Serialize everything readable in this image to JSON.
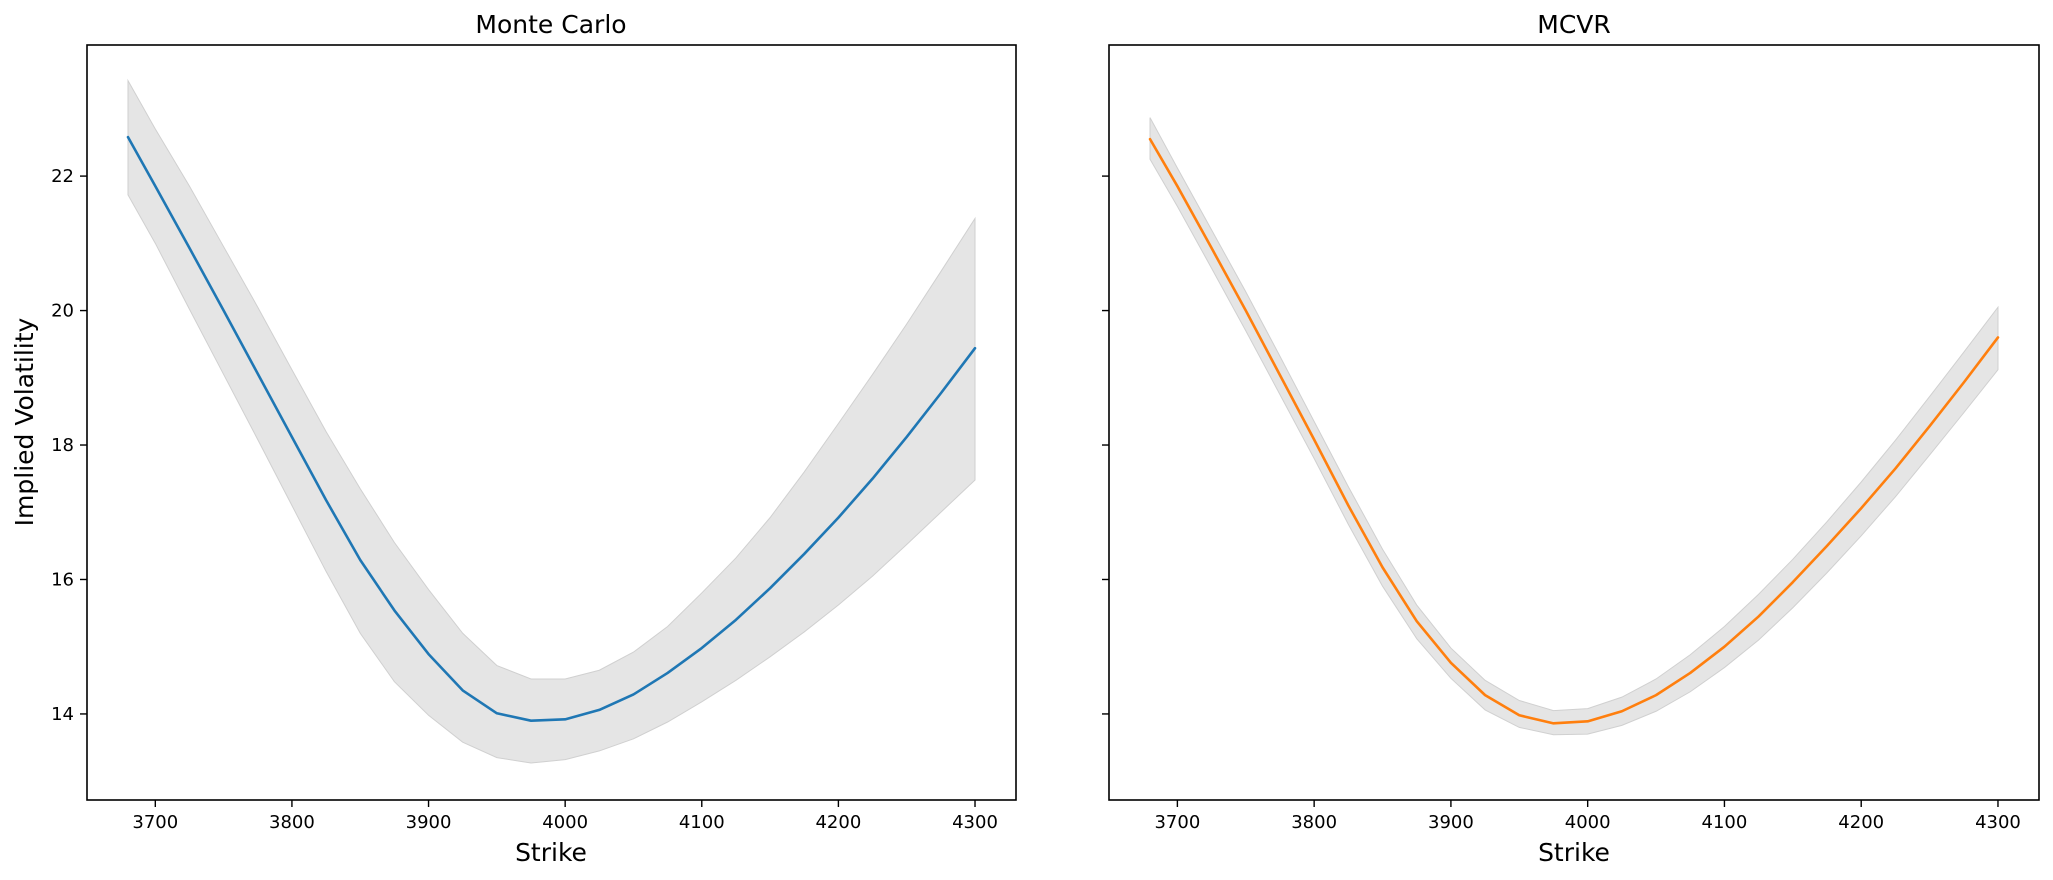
{
  "chart_data": [
    {
      "type": "line",
      "title": "Monte Carlo",
      "xlabel": "Strike",
      "ylabel": "Implied Volatility",
      "xlim": [
        3650,
        4330
      ],
      "ylim": [
        12.72,
        23.95
      ],
      "xticks": [
        3700,
        3800,
        3900,
        4000,
        4100,
        4200,
        4300
      ],
      "yticks": [
        14,
        16,
        18,
        20,
        22
      ],
      "grid": false,
      "x": [
        3680,
        3700,
        3725,
        3750,
        3775,
        3800,
        3825,
        3850,
        3875,
        3900,
        3925,
        3950,
        3975,
        4000,
        4025,
        4050,
        4075,
        4100,
        4125,
        4150,
        4175,
        4200,
        4225,
        4250,
        4275,
        4300
      ],
      "series": [
        {
          "color": "#1f77b4",
          "values": [
            22.58,
            21.85,
            20.93,
            20.0,
            19.06,
            18.12,
            17.18,
            16.29,
            15.54,
            14.89,
            14.35,
            14.01,
            13.9,
            13.92,
            14.06,
            14.29,
            14.61,
            14.98,
            15.4,
            15.87,
            16.38,
            16.92,
            17.5,
            18.12,
            18.77,
            19.44
          ],
          "band_upper": [
            23.42,
            22.7,
            21.85,
            20.95,
            20.05,
            19.12,
            18.2,
            17.35,
            16.55,
            15.85,
            15.2,
            14.72,
            14.52,
            14.52,
            14.65,
            14.92,
            15.3,
            15.8,
            16.32,
            16.92,
            17.6,
            18.32,
            19.05,
            19.8,
            20.58,
            21.37
          ],
          "band_lower": [
            21.72,
            21.0,
            20.02,
            19.05,
            18.08,
            17.1,
            16.12,
            15.2,
            14.48,
            13.98,
            13.58,
            13.35,
            13.27,
            13.32,
            13.45,
            13.63,
            13.88,
            14.18,
            14.5,
            14.85,
            15.22,
            15.62,
            16.05,
            16.52,
            17.0,
            17.48
          ],
          "band_color": "#e5e5e5"
        }
      ]
    },
    {
      "type": "line",
      "title": "MCVR",
      "xlabel": "Strike",
      "xlim": [
        3650,
        4330
      ],
      "ylim": [
        12.72,
        23.95
      ],
      "xticks": [
        3700,
        3800,
        3900,
        4000,
        4100,
        4200,
        4300
      ],
      "yticks": [
        14,
        16,
        18,
        20,
        22
      ],
      "shared_y": true,
      "grid": false,
      "x": [
        3680,
        3700,
        3725,
        3750,
        3775,
        3800,
        3825,
        3850,
        3875,
        3900,
        3925,
        3950,
        3975,
        4000,
        4025,
        4050,
        4075,
        4100,
        4125,
        4150,
        4175,
        4200,
        4225,
        4250,
        4275,
        4300
      ],
      "series": [
        {
          "color": "#ff7f0e",
          "values": [
            22.55,
            21.85,
            20.93,
            20.0,
            19.04,
            18.08,
            17.1,
            16.18,
            15.38,
            14.76,
            14.28,
            13.98,
            13.86,
            13.89,
            14.04,
            14.28,
            14.61,
            15.0,
            15.45,
            15.96,
            16.5,
            17.06,
            17.65,
            18.28,
            18.93,
            19.6
          ],
          "band_upper": [
            22.87,
            22.12,
            21.2,
            20.28,
            19.32,
            18.35,
            17.38,
            16.45,
            15.62,
            14.98,
            14.5,
            14.2,
            14.05,
            14.08,
            14.25,
            14.52,
            14.88,
            15.3,
            15.78,
            16.3,
            16.86,
            17.45,
            18.07,
            18.72,
            19.38,
            20.05
          ],
          "band_lower": [
            22.25,
            21.55,
            20.63,
            19.7,
            18.75,
            17.8,
            16.82,
            15.9,
            15.12,
            14.53,
            14.06,
            13.8,
            13.69,
            13.7,
            13.83,
            14.04,
            14.33,
            14.69,
            15.1,
            15.58,
            16.1,
            16.65,
            17.23,
            17.85,
            18.48,
            19.12
          ],
          "band_color": "#e5e5e5"
        }
      ]
    }
  ]
}
